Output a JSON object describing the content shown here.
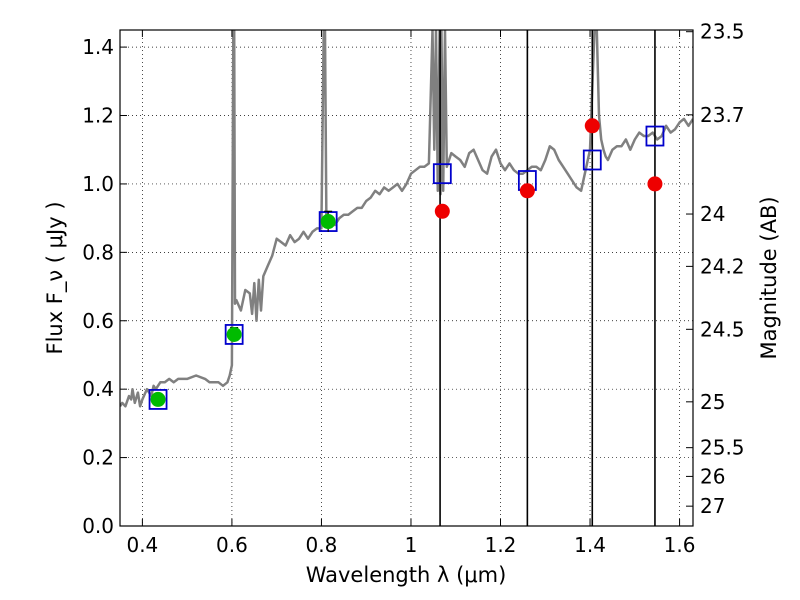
{
  "chart_data": {
    "type": "scatter",
    "xlabel": "Wavelength  λ (μm)",
    "ylabel": "Flux  F_ν ( μJy )",
    "y2label": "Magnitude (AB)",
    "xlim": [
      0.35,
      1.63
    ],
    "ylim": [
      0.0,
      1.45
    ],
    "grid": true,
    "x_ticks": [
      0.4,
      0.6,
      0.8,
      1.0,
      1.2,
      1.4,
      1.6
    ],
    "x_tick_labels": [
      "0.4",
      "0.6",
      "0.8",
      "1",
      "1.2",
      "1.4",
      "1.6"
    ],
    "y_ticks": [
      0.0,
      0.2,
      0.4,
      0.6,
      0.8,
      1.0,
      1.2,
      1.4
    ],
    "y_tick_labels": [
      "0.0",
      "0.2",
      "0.4",
      "0.6",
      "0.8",
      "1.0",
      "1.2",
      "1.4"
    ],
    "mag_ticks": [
      {
        "label": "23.5",
        "flux": 1.445
      },
      {
        "label": "23.7",
        "flux": 1.202
      },
      {
        "label": "24",
        "flux": 0.912
      },
      {
        "label": "24.2",
        "flux": 0.759
      },
      {
        "label": "24.5",
        "flux": 0.575
      },
      {
        "label": "25",
        "flux": 0.363
      },
      {
        "label": "25.5",
        "flux": 0.229
      },
      {
        "label": "26",
        "flux": 0.145
      },
      {
        "label": "27",
        "flux": 0.058
      }
    ],
    "vertical_lines": [
      1.065,
      1.26,
      1.405,
      1.545
    ],
    "model_spectrum": {
      "color": "#808080",
      "x": [
        0.35,
        0.355,
        0.362,
        0.37,
        0.375,
        0.378,
        0.383,
        0.39,
        0.395,
        0.4,
        0.41,
        0.42,
        0.425,
        0.43,
        0.44,
        0.45,
        0.46,
        0.47,
        0.48,
        0.5,
        0.52,
        0.54,
        0.55,
        0.56,
        0.57,
        0.58,
        0.59,
        0.595,
        0.6,
        0.603,
        0.605,
        0.607,
        0.61,
        0.62,
        0.63,
        0.64,
        0.645,
        0.65,
        0.655,
        0.66,
        0.665,
        0.67,
        0.68,
        0.69,
        0.7,
        0.71,
        0.72,
        0.73,
        0.74,
        0.75,
        0.76,
        0.77,
        0.78,
        0.79,
        0.8,
        0.805,
        0.808,
        0.811,
        0.815,
        0.82,
        0.83,
        0.84,
        0.85,
        0.86,
        0.87,
        0.88,
        0.89,
        0.9,
        0.91,
        0.92,
        0.93,
        0.94,
        0.95,
        0.96,
        0.97,
        0.98,
        0.99,
        1.0,
        1.01,
        1.02,
        1.03,
        1.04,
        1.048,
        1.052,
        1.056,
        1.06,
        1.064,
        1.066,
        1.068,
        1.072,
        1.076,
        1.08,
        1.09,
        1.1,
        1.11,
        1.12,
        1.13,
        1.14,
        1.15,
        1.16,
        1.17,
        1.18,
        1.19,
        1.2,
        1.21,
        1.22,
        1.23,
        1.24,
        1.25,
        1.26,
        1.27,
        1.28,
        1.29,
        1.3,
        1.31,
        1.32,
        1.33,
        1.34,
        1.35,
        1.36,
        1.37,
        1.38,
        1.39,
        1.4,
        1.41,
        1.415,
        1.42,
        1.425,
        1.43,
        1.435,
        1.44,
        1.45,
        1.46,
        1.47,
        1.48,
        1.49,
        1.5,
        1.51,
        1.52,
        1.53,
        1.54,
        1.55,
        1.56,
        1.57,
        1.58,
        1.59,
        1.6,
        1.61,
        1.62,
        1.63
      ],
      "y": [
        0.35,
        0.36,
        0.35,
        0.38,
        0.37,
        0.4,
        0.36,
        0.39,
        0.35,
        0.37,
        0.4,
        0.38,
        0.41,
        0.4,
        0.42,
        0.42,
        0.43,
        0.42,
        0.43,
        0.43,
        0.44,
        0.43,
        0.42,
        0.42,
        0.42,
        0.41,
        0.42,
        0.44,
        0.47,
        1.45,
        1.45,
        0.65,
        0.66,
        0.63,
        0.69,
        0.68,
        0.62,
        0.71,
        0.6,
        0.72,
        0.63,
        0.73,
        0.76,
        0.79,
        0.84,
        0.83,
        0.82,
        0.85,
        0.83,
        0.84,
        0.86,
        0.84,
        0.86,
        0.87,
        0.87,
        1.45,
        1.45,
        0.89,
        0.9,
        0.89,
        0.88,
        0.9,
        0.91,
        0.91,
        0.92,
        0.93,
        0.93,
        0.95,
        0.96,
        0.98,
        0.97,
        0.99,
        0.98,
        0.99,
        1.0,
        0.98,
        1.0,
        1.03,
        1.04,
        1.05,
        1.05,
        1.06,
        1.45,
        1.1,
        1.45,
        0.98,
        1.45,
        0.97,
        1.45,
        0.98,
        1.45,
        1.05,
        1.09,
        1.08,
        1.07,
        1.05,
        1.09,
        1.1,
        1.07,
        1.04,
        1.03,
        1.08,
        1.1,
        1.06,
        1.04,
        1.06,
        1.04,
        1.03,
        1.03,
        1.04,
        1.05,
        1.05,
        1.04,
        1.07,
        1.11,
        1.1,
        1.07,
        1.05,
        1.03,
        1.01,
        0.99,
        0.98,
        1.04,
        1.1,
        1.45,
        1.45,
        1.2,
        1.13,
        1.1,
        1.08,
        1.07,
        1.1,
        1.11,
        1.11,
        1.13,
        1.1,
        1.13,
        1.15,
        1.14,
        1.14,
        1.15,
        1.13,
        1.14,
        1.17,
        1.15,
        1.16,
        1.18,
        1.19,
        1.17,
        1.19
      ]
    },
    "series": [
      {
        "name": "",
        "marker": "square",
        "color": "#0000cc",
        "x": [
          0.435,
          0.605,
          0.815,
          1.07,
          1.26,
          1.405,
          1.545
        ],
        "y": [
          0.37,
          0.56,
          0.89,
          1.03,
          1.01,
          1.07,
          1.14
        ]
      },
      {
        "name": "",
        "marker": "circle",
        "color": "#00bb00",
        "x": [
          0.435,
          0.605,
          0.815
        ],
        "y": [
          0.37,
          0.56,
          0.89
        ],
        "yerr": [
          0.01,
          0.02,
          0.03
        ]
      },
      {
        "name": "",
        "marker": "circle",
        "color": "#ee0000",
        "x": [
          1.07,
          1.26,
          1.405,
          1.545
        ],
        "y": [
          0.92,
          0.98,
          1.17,
          1.0
        ]
      }
    ]
  }
}
